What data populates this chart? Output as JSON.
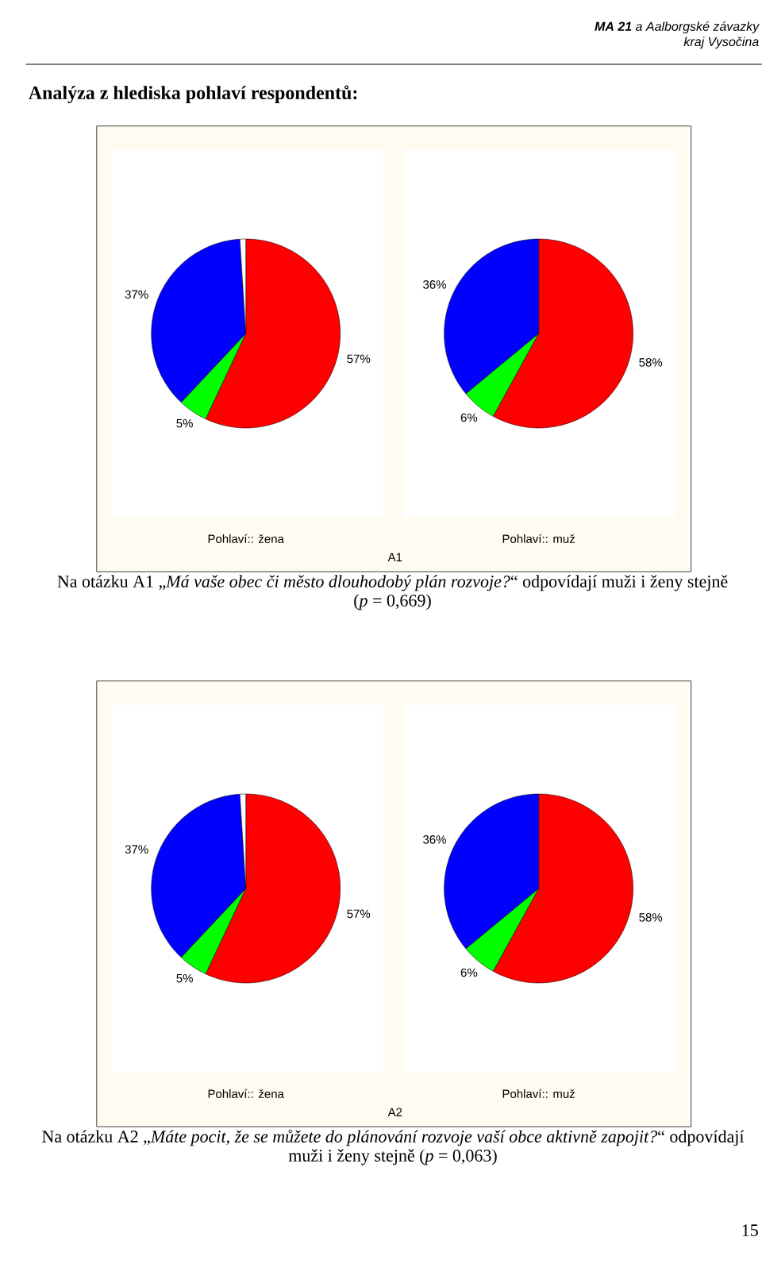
{
  "chart_data": [
    {
      "type": "pie",
      "title": "Pohlaví:: žena",
      "categories": [
        null,
        null,
        null,
        null
      ],
      "values": [
        57,
        5,
        37,
        1
      ],
      "colors": [
        "#ff0000",
        "#00ff00",
        "#0000ff",
        "#ffffff"
      ],
      "value_labels": [
        "57%",
        "5%",
        "37%",
        null
      ],
      "annotations": [
        "**MA 21** a Aalborgské závazky",
        "kraj Vysočina",
        "Analýza z hlediska pohlaví respondentů:"
      ]
    },
    {
      "type": "pie",
      "title": "Pohlaví:: muž",
      "categories": [
        null,
        null,
        null
      ],
      "values": [
        58,
        6,
        36
      ],
      "colors": [
        "#ff0000",
        "#00ff00",
        "#0000ff"
      ],
      "value_labels": [
        "58%",
        "6%",
        "36%"
      ],
      "annotations": [
        "A1",
        "Na otázku A1 „*Má vaše obec či město dlouhodobý plán rozvoje?*“ odpovídají muži i ženy stejně (*p* = 0,669)"
      ]
    },
    {
      "type": "pie",
      "title": "Pohlaví:: žena",
      "categories": [
        null,
        null,
        null,
        null
      ],
      "values": [
        57,
        5,
        37,
        1
      ],
      "colors": [
        "#ff0000",
        "#00ff00",
        "#0000ff",
        "#ffffff"
      ],
      "value_labels": [
        "57%",
        "5%",
        "37%",
        null
      ]
    },
    {
      "type": "pie",
      "title": "Pohlaví:: muž",
      "categories": [
        null,
        null,
        null
      ],
      "values": [
        58,
        6,
        36
      ],
      "colors": [
        "#ff0000",
        "#00ff00",
        "#0000ff"
      ],
      "value_labels": [
        "58%",
        "6%",
        "36%"
      ],
      "annotations": [
        "A2",
        "Na otázku A2 „*Máte pocit, že se můžete do plánování rozvoje vaší obce aktivně zapojit?*“ odpovídají muži i ženy stejně (*p* = 0,063)",
        "15"
      ]
    }
  ]
}
